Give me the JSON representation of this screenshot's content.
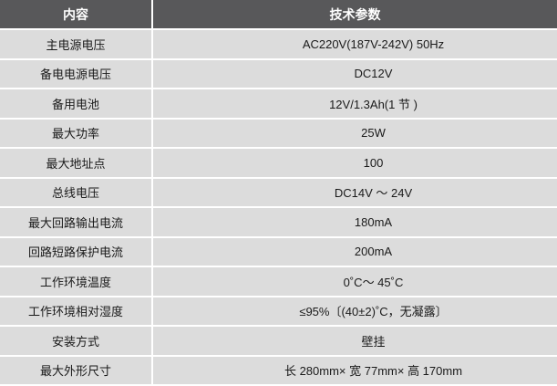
{
  "headers": [
    "内容",
    "技术参数"
  ],
  "rows": [
    [
      "主电源电压",
      "AC220V(187V-242V)   50Hz"
    ],
    [
      "备电电源电压",
      "DC12V"
    ],
    [
      "备用电池",
      "12V/1.3Ah(1 节 )"
    ],
    [
      "最大功率",
      "25W"
    ],
    [
      "最大地址点",
      "100"
    ],
    [
      "总线电压",
      "DC14V ～ 24V"
    ],
    [
      "最大回路输出电流",
      "180mA"
    ],
    [
      "回路短路保护电流",
      "200mA"
    ],
    [
      "工作环境温度",
      "0˚C～ 45˚C"
    ],
    [
      "工作环境相对湿度",
      "≤95%〔(40±2)˚C，无凝露〕"
    ],
    [
      "安装方式",
      "壁挂"
    ],
    [
      "最大外形尺寸",
      "长 280mm× 宽 77mm× 高 170mm"
    ]
  ]
}
